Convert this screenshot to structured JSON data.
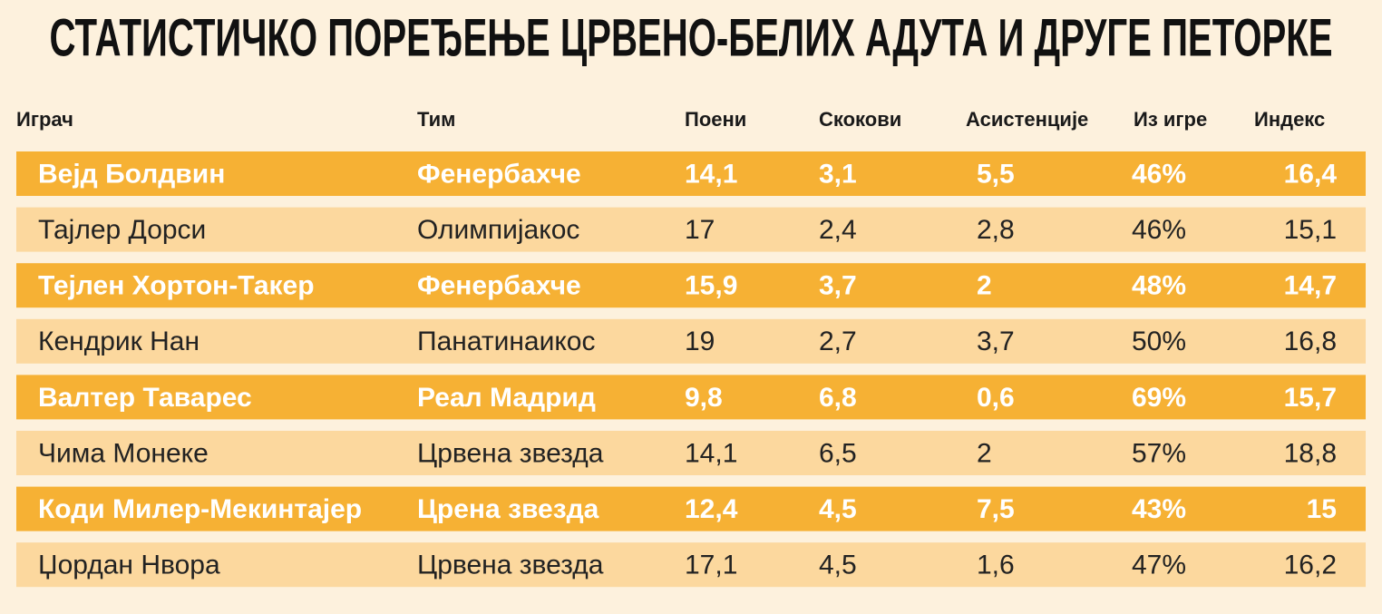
{
  "header": {
    "title": "СТАТИСТИЧКО ПОРЕЂЕЊЕ ЦРВЕНО-БЕЛИХ АДУТА И ДРУГЕ ПЕТОРКЕ"
  },
  "table": {
    "columns": [
      "Играч",
      "Тим",
      "Поени",
      "Скокови",
      "Асистенције",
      "Из игре",
      "Индекс"
    ],
    "rows": [
      [
        "Вејд Болдвин",
        "Фенербахче",
        "14,1",
        "3,1",
        "5,5",
        "46%",
        "16,4"
      ],
      [
        "Тајлер Дорси",
        "Олимпијакос",
        "17",
        "2,4",
        "2,8",
        "46%",
        "15,1"
      ],
      [
        "Тејлен Хортон-Такер",
        "Фенербахче",
        "15,9",
        "3,7",
        "2",
        "48%",
        "14,7"
      ],
      [
        "Кендрик Нан",
        "Панатинаикос",
        "19",
        "2,7",
        "3,7",
        "50%",
        "16,8"
      ],
      [
        "Валтер Таварес",
        "Реал Мадрид",
        "9,8",
        "6,8",
        "0,6",
        "69%",
        "15,7"
      ],
      [
        "Чима Монеке",
        "Црвена звезда",
        "14,1",
        "6,5",
        "2",
        "57%",
        "18,8"
      ],
      [
        "Коди Милер-Мекинтајер",
        "Црена звезда",
        "12,4",
        "4,5",
        "7,5",
        "43%",
        "15"
      ],
      [
        "Џордан Нвора",
        "Црвена звезда",
        "17,1",
        "4,5",
        "1,6",
        "47%",
        "16,2"
      ]
    ]
  }
}
